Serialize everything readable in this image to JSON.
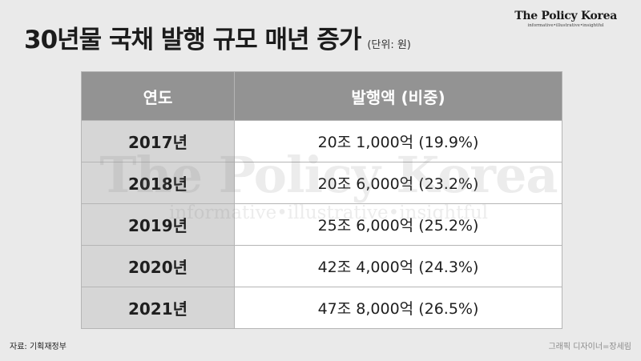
{
  "title": "30년물 국채 발행 규모 매년 증가",
  "unit": "(단위: 원)",
  "logo": {
    "name": "The Policy Korea",
    "tagline": "informative•illustrative•insightful"
  },
  "watermark": {
    "name": "The Policy Korea",
    "tagline": "informative•illustrative•insightful"
  },
  "table": {
    "headers": [
      "연도",
      "발행액 (비중)"
    ],
    "rows": [
      {
        "year": "2017년",
        "amount": "20조 1,000억 (19.9%)"
      },
      {
        "year": "2018년",
        "amount": "20조 6,000억 (23.2%)"
      },
      {
        "year": "2019년",
        "amount": "25조 6,000억 (25.2%)"
      },
      {
        "year": "2020년",
        "amount": "42조 4,000억 (24.3%)"
      },
      {
        "year": "2021년",
        "amount": "47조 8,000억 (26.5%)"
      }
    ]
  },
  "source": "자료: 기획재정부",
  "credit": "그래픽 디자이너=장세림"
}
